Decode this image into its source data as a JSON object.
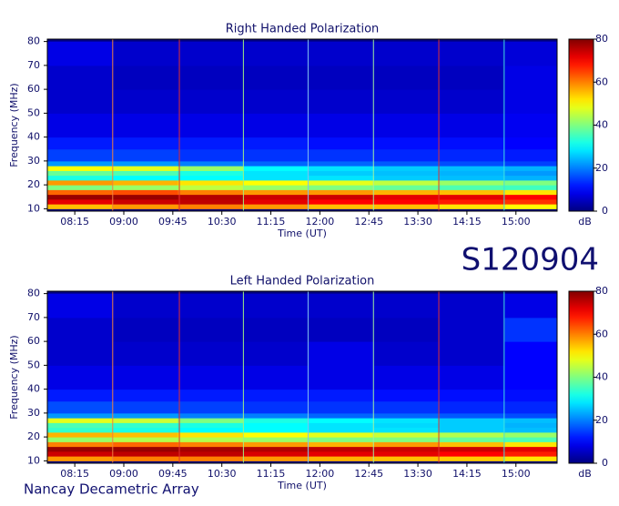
{
  "labels": {
    "date_code": "S120904",
    "instrument": "Nancay Decametric Array"
  },
  "chart_data": [
    {
      "type": "heatmap",
      "title": "Right Handed Polarization",
      "x_label": "Time (UT)",
      "y_label": "Frequency (MHz)",
      "colormap": "jet",
      "xlim": [
        7.83,
        15.63
      ],
      "ylim": [
        9,
        81
      ],
      "xticks": [
        {
          "value": 8.25,
          "label": "08:15"
        },
        {
          "value": 9,
          "label": "09:00"
        },
        {
          "value": 9.75,
          "label": "09:45"
        },
        {
          "value": 10.5,
          "label": "10:30"
        },
        {
          "value": 11.25,
          "label": "11:15"
        },
        {
          "value": 12,
          "label": "12:00"
        },
        {
          "value": 12.75,
          "label": "12:45"
        },
        {
          "value": 13.5,
          "label": "13:30"
        },
        {
          "value": 14.25,
          "label": "14:15"
        },
        {
          "value": 15,
          "label": "15:00"
        }
      ],
      "yticks": [
        10,
        20,
        30,
        40,
        50,
        60,
        70,
        80
      ],
      "x_bins": [
        7.83,
        8.83,
        9.83,
        10.83,
        11.83,
        12.83,
        13.83,
        14.83,
        15.63
      ],
      "y_bins": [
        10,
        12,
        14,
        16,
        18,
        20,
        22,
        24,
        26,
        28,
        30,
        35,
        40,
        50,
        60,
        70,
        80
      ],
      "values": [
        [
          55,
          58,
          60,
          58,
          55,
          55,
          52,
          50
        ],
        [
          72,
          74,
          75,
          72,
          70,
          70,
          68,
          66
        ],
        [
          78,
          78,
          76,
          74,
          74,
          72,
          72,
          70
        ],
        [
          62,
          64,
          60,
          58,
          58,
          56,
          55,
          52
        ],
        [
          40,
          42,
          45,
          42,
          40,
          38,
          36,
          35
        ],
        [
          58,
          56,
          52,
          50,
          48,
          45,
          42,
          40
        ],
        [
          32,
          30,
          30,
          28,
          28,
          26,
          25,
          24
        ],
        [
          38,
          36,
          32,
          28,
          26,
          25,
          24,
          22
        ],
        [
          50,
          48,
          42,
          30,
          28,
          26,
          25,
          24
        ],
        [
          22,
          22,
          20,
          18,
          18,
          17,
          16,
          15
        ],
        [
          15,
          15,
          14,
          14,
          14,
          13,
          13,
          12
        ],
        [
          12,
          12,
          12,
          12,
          11,
          11,
          11,
          10
        ],
        [
          8,
          8,
          8,
          8,
          8,
          8,
          8,
          9
        ],
        [
          6,
          6,
          6,
          6,
          6,
          6,
          6,
          8
        ],
        [
          6,
          5,
          5,
          5,
          5,
          5,
          5,
          8
        ],
        [
          8,
          6,
          6,
          6,
          6,
          6,
          6,
          7
        ]
      ],
      "markers": [
        {
          "x": 8.83,
          "color": "#f08040"
        },
        {
          "x": 9.85,
          "color": "#e03030"
        },
        {
          "x": 10.83,
          "color": "#a0f080"
        },
        {
          "x": 11.82,
          "color": "#80c0f0"
        },
        {
          "x": 12.82,
          "color": "#a0f0a0"
        },
        {
          "x": 13.82,
          "color": "#e03030"
        },
        {
          "x": 14.82,
          "color": "#40e0e0"
        }
      ],
      "colorbar": {
        "lim": [
          0,
          80
        ],
        "ticks": [
          0,
          20,
          40,
          60,
          80
        ],
        "label": "dB"
      }
    },
    {
      "type": "heatmap",
      "title": "Left Handed Polarization",
      "x_label": "Time (UT)",
      "y_label": "Frequency (MHz)",
      "colormap": "jet",
      "xlim": [
        7.83,
        15.63
      ],
      "ylim": [
        9,
        81
      ],
      "xticks": [
        {
          "value": 8.25,
          "label": "08:15"
        },
        {
          "value": 9,
          "label": "09:00"
        },
        {
          "value": 9.75,
          "label": "09:45"
        },
        {
          "value": 10.5,
          "label": "10:30"
        },
        {
          "value": 11.25,
          "label": "11:15"
        },
        {
          "value": 12,
          "label": "12:00"
        },
        {
          "value": 12.75,
          "label": "12:45"
        },
        {
          "value": 13.5,
          "label": "13:30"
        },
        {
          "value": 14.25,
          "label": "14:15"
        },
        {
          "value": 15,
          "label": "15:00"
        }
      ],
      "yticks": [
        10,
        20,
        30,
        40,
        50,
        60,
        70,
        80
      ],
      "x_bins": [
        7.83,
        8.83,
        9.83,
        10.83,
        11.83,
        12.83,
        13.83,
        14.83,
        15.63
      ],
      "y_bins": [
        10,
        12,
        14,
        16,
        18,
        20,
        22,
        24,
        26,
        28,
        30,
        35,
        40,
        50,
        60,
        70,
        80
      ],
      "values": [
        [
          58,
          60,
          60,
          58,
          56,
          55,
          54,
          52
        ],
        [
          74,
          75,
          75,
          73,
          72,
          72,
          70,
          68
        ],
        [
          78,
          78,
          77,
          76,
          75,
          74,
          74,
          72
        ],
        [
          60,
          62,
          60,
          58,
          56,
          58,
          55,
          52
        ],
        [
          42,
          44,
          44,
          42,
          40,
          40,
          38,
          36
        ],
        [
          56,
          55,
          52,
          50,
          48,
          46,
          44,
          42
        ],
        [
          34,
          32,
          30,
          30,
          28,
          28,
          26,
          25
        ],
        [
          36,
          34,
          32,
          30,
          28,
          27,
          26,
          24
        ],
        [
          48,
          46,
          40,
          32,
          30,
          28,
          26,
          25
        ],
        [
          22,
          22,
          20,
          20,
          18,
          18,
          17,
          16
        ],
        [
          16,
          15,
          15,
          14,
          14,
          14,
          13,
          13
        ],
        [
          12,
          12,
          12,
          12,
          12,
          11,
          11,
          11
        ],
        [
          8,
          8,
          8,
          8,
          8,
          8,
          8,
          10
        ],
        [
          6,
          6,
          6,
          6,
          8,
          6,
          6,
          10
        ],
        [
          6,
          5,
          5,
          5,
          5,
          5,
          6,
          14
        ],
        [
          8,
          6,
          6,
          6,
          6,
          6,
          6,
          8
        ]
      ],
      "markers": [
        {
          "x": 8.83,
          "color": "#f08040"
        },
        {
          "x": 9.85,
          "color": "#e03030"
        },
        {
          "x": 10.83,
          "color": "#a0f080"
        },
        {
          "x": 11.82,
          "color": "#80c0f0"
        },
        {
          "x": 12.82,
          "color": "#a0f0a0"
        },
        {
          "x": 13.82,
          "color": "#e03030"
        },
        {
          "x": 14.82,
          "color": "#40e0e0"
        }
      ],
      "colorbar": {
        "lim": [
          0,
          80
        ],
        "ticks": [
          0,
          20,
          40,
          60,
          80
        ],
        "label": "dB"
      }
    }
  ]
}
